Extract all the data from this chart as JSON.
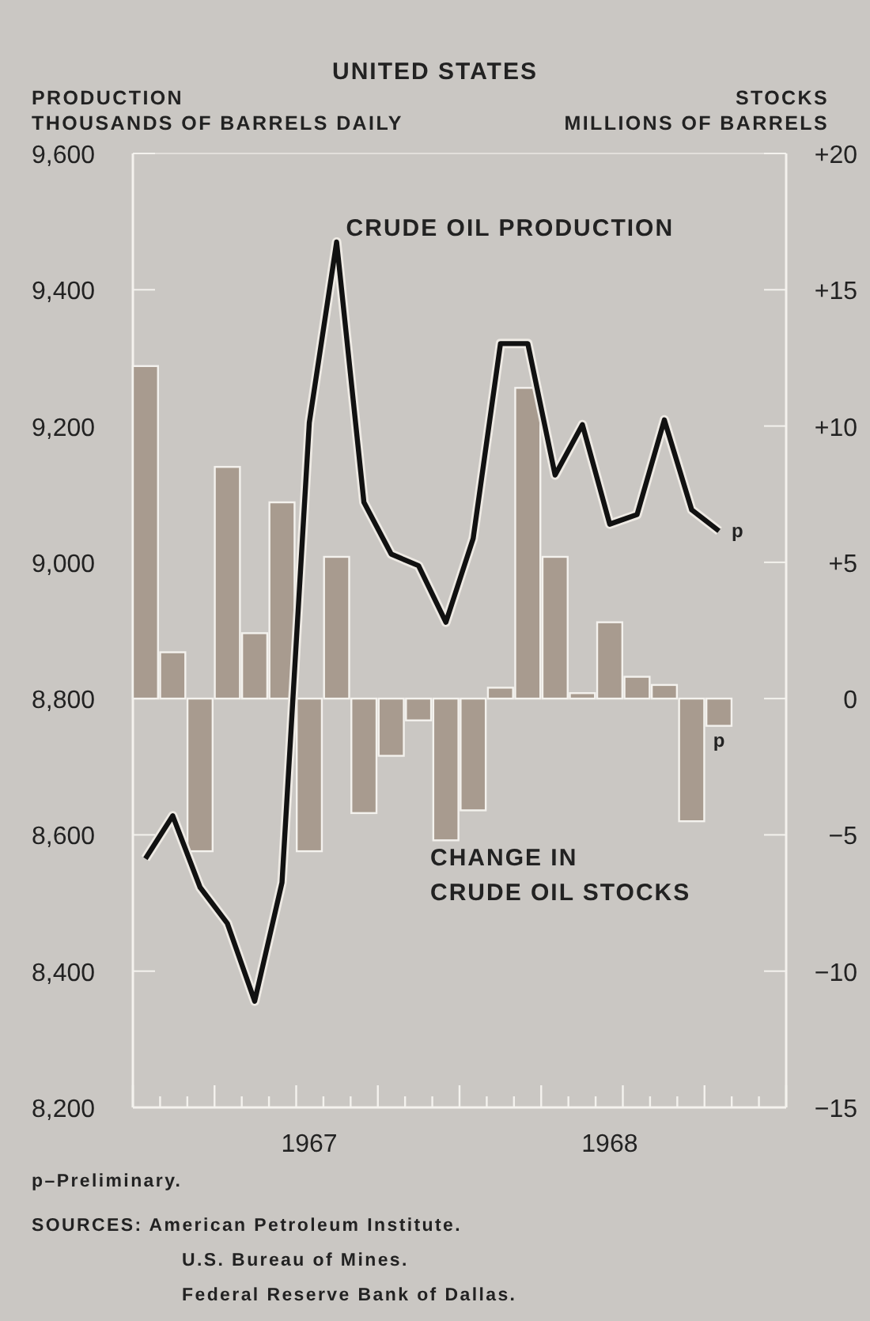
{
  "chart_data": {
    "type": "bar",
    "title": "UNITED STATES",
    "ylabel": "PRODUCTION\nTHOUSANDS OF BARRELS DAILY",
    "y2label": "STOCKS\nMILLIONS OF BARRELS",
    "categories": [
      null,
      null,
      null,
      null,
      null,
      null,
      "1967",
      null,
      null,
      null,
      null,
      null,
      null,
      null,
      null,
      null,
      null,
      "1968",
      null,
      null,
      null,
      null,
      null,
      null
    ],
    "series": [
      {
        "name": "CHANGE IN\nCRUDE OIL STOCKS",
        "axis": "y2",
        "color": "#a89b8f",
        "values": [
          12.2,
          1.7,
          -5.6,
          8.5,
          2.4,
          7.2,
          -5.6,
          5.2,
          -4.2,
          -2.1,
          -0.8,
          -5.2,
          -4.1,
          0.4,
          11.4,
          5.2,
          0.2,
          2.8,
          0.8,
          0.5,
          -4.5,
          -1.0,
          null,
          null
        ],
        "value_labels": [
          null,
          null,
          null,
          null,
          null,
          null,
          null,
          null,
          null,
          null,
          null,
          null,
          null,
          null,
          null,
          null,
          null,
          null,
          null,
          null,
          null,
          "p",
          null,
          null
        ]
      },
      {
        "name": "CRUDE OIL PRODUCTION",
        "type": "line",
        "axis": "y",
        "color": "#111111",
        "values": [
          8565,
          8628,
          8523,
          8470,
          8356,
          8530,
          9205,
          9470,
          9088,
          9012,
          8995,
          8912,
          9035,
          9321,
          9321,
          9128,
          9202,
          9056,
          9070,
          9209,
          9077,
          9046,
          null,
          null
        ],
        "value_labels": [
          null,
          null,
          null,
          null,
          null,
          null,
          null,
          null,
          null,
          null,
          null,
          null,
          null,
          null,
          null,
          null,
          null,
          null,
          null,
          null,
          null,
          "p",
          null,
          null
        ]
      }
    ],
    "ylim": [
      8200,
      9600
    ],
    "yticks": [
      {
        "value": 8200,
        "label": "8,200"
      },
      {
        "value": 8400,
        "label": "8,400"
      },
      {
        "value": 8600,
        "label": "8,600"
      },
      {
        "value": 8800,
        "label": "8,800"
      },
      {
        "value": 9000,
        "label": "9,000"
      },
      {
        "value": 9200,
        "label": "9,200"
      },
      {
        "value": 9400,
        "label": "9,400"
      },
      {
        "value": 9600,
        "label": "9,600"
      }
    ],
    "y2lim": [
      -15,
      20
    ],
    "y2ticks": [
      {
        "value": -15,
        "label": "−15"
      },
      {
        "value": -10,
        "label": "−10"
      },
      {
        "value": -5,
        "label": "−5"
      },
      0,
      {
        "value": 5,
        "label": "+5"
      },
      {
        "value": 10,
        "label": "+10"
      },
      {
        "value": 15,
        "label": "+15"
      },
      {
        "value": 20,
        "label": "+20"
      }
    ],
    "grid": false,
    "annotations": [
      "p–Preliminary.",
      "SOURCES: American Petroleum Institute.",
      "U.S. Bureau of Mines.",
      "Federal Reserve Bank of Dallas."
    ]
  }
}
